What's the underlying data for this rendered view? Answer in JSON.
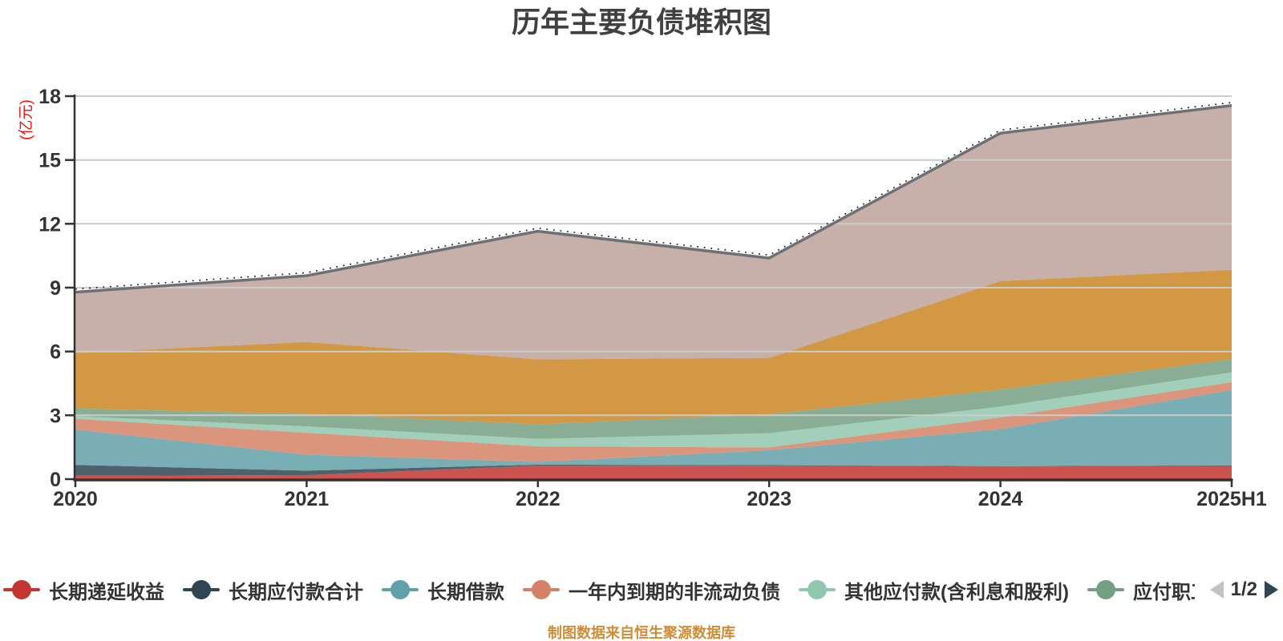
{
  "title": "历年主要负债堆积图",
  "y_axis_name": "(亿元)",
  "footer_note": "制图数据来自恒生聚源数据库",
  "legend": {
    "items": [
      {
        "label": "长期递延收益",
        "color": "#c23531"
      },
      {
        "label": "长期应付款合计",
        "color": "#2f4554"
      },
      {
        "label": "长期借款",
        "color": "#61a0a8"
      },
      {
        "label": "一年内到期的非流动负债",
        "color": "#d48265"
      },
      {
        "label": "其他应付款(含利息和股利)",
        "color": "#91c7ae"
      },
      {
        "label": "应付职工薪酬",
        "color": "#749f83"
      }
    ],
    "pager": {
      "label": "1/2",
      "prev_color": "#c0c4c9",
      "next_color": "#2f4554"
    }
  },
  "chart_data": {
    "type": "area",
    "stacked": true,
    "title": "历年主要负债堆积图",
    "ylabel": "(亿元)",
    "categories": [
      "2020",
      "2021",
      "2022",
      "2023",
      "2024",
      "2025H1"
    ],
    "series": [
      {
        "name": "长期递延收益",
        "color": "#c23531",
        "values": [
          0.16,
          0.19,
          0.64,
          0.63,
          0.59,
          0.62
        ]
      },
      {
        "name": "长期应付款合计",
        "color": "#2f4554",
        "values": [
          0.51,
          0.21,
          0.04,
          0.03,
          0.02,
          0.03
        ]
      },
      {
        "name": "长期借款",
        "color": "#61a0a8",
        "values": [
          1.66,
          0.75,
          0.13,
          0.7,
          1.74,
          3.54
        ]
      },
      {
        "name": "一年内到期的非流动负债",
        "color": "#d48265",
        "values": [
          0.51,
          1.03,
          0.73,
          0.13,
          0.55,
          0.37
        ]
      },
      {
        "name": "其他应付款(含利息和股利)",
        "color": "#91c7ae",
        "values": [
          0.12,
          0.3,
          0.35,
          0.67,
          0.51,
          0.46
        ]
      },
      {
        "name": "应付职工薪酬",
        "color": "#749f83",
        "values": [
          0.36,
          0.59,
          0.69,
          0.89,
          0.8,
          0.62
        ]
      },
      {
        "name": "",
        "color": "#ca8622",
        "values": [
          2.61,
          3.38,
          3.05,
          2.65,
          5.1,
          4.2
        ]
      },
      {
        "name": "",
        "color": "#bda29a",
        "values": [
          2.8,
          3.05,
          5.96,
          4.63,
          6.89,
          7.66
        ]
      }
    ],
    "total_line": {
      "name": "",
      "color": "#6e7074",
      "values": [
        8.73,
        9.5,
        11.59,
        10.33,
        16.2,
        17.5
      ]
    },
    "area_opacity": 0.85,
    "yticks": [
      0,
      3,
      6,
      9,
      12,
      15,
      18
    ],
    "ylim": [
      0,
      18
    ],
    "grid_color": "#cccccc",
    "axis_color": "#333333",
    "tick_label_color": "#333333",
    "legend_position": "bottom"
  }
}
